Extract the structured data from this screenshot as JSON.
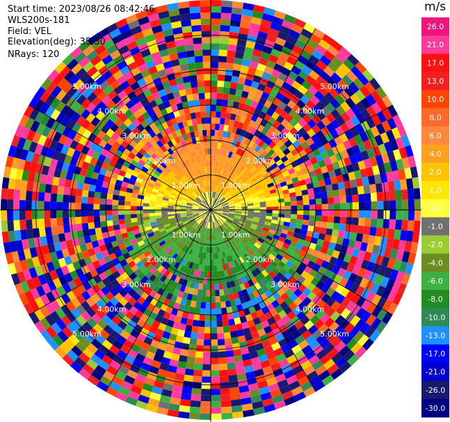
{
  "header": {
    "start_time": "Start time: 2023/08/26 08:42:46",
    "instrument": "WLS200s-181",
    "field": "Field: VEL",
    "elevation": "Elevation(deg): 35.30",
    "nrays": "NRays: 120"
  },
  "colorbar": {
    "unit": "m/s",
    "ticks": [
      "26.0",
      "21.0",
      "17.0",
      "13.0",
      "10.0",
      "8.0",
      "6.0",
      "4.0",
      "2.0",
      "1.0",
      "0.0",
      "-1.0",
      "-2.0",
      "-4.0",
      "-6.0",
      "-8.0",
      "-10.0",
      "-13.0",
      "-17.0",
      "-21.0",
      "-26.0",
      "-30.0"
    ],
    "colors": [
      "#f0147d",
      "#ff3c9c",
      "#ff1010",
      "#f02020",
      "#ff4500",
      "#ff6a2a",
      "#ff8a3d",
      "#ffa020",
      "#ffc400",
      "#ffe600",
      "#ffff40",
      "#707070",
      "#9acd32",
      "#6b8e23",
      "#3cb043",
      "#228b22",
      "#2e8b57",
      "#1e90ff",
      "#0000ff",
      "#0000cd",
      "#191970",
      "#000080"
    ]
  },
  "chart_data": {
    "type": "heatmap",
    "title": "",
    "field": "VEL",
    "unit": "m/s",
    "nrays": 120,
    "range_ring_labels": [
      "1.00km",
      "2.00km",
      "3.00km",
      "4.00km",
      "5.00km"
    ],
    "range_rings_km": [
      1,
      2,
      3,
      4,
      5
    ],
    "max_range_km": 6.0,
    "value_range": [
      -30.0,
      26.0
    ],
    "pattern": {
      "north_half_near": "positive 2 to 8 m/s (yellow to orange)",
      "south_half_near": "negative -2 to -10 m/s (green to blue)",
      "center": "near 0 m/s (gray)",
      "far_range": "noisy values spanning full scale"
    }
  }
}
